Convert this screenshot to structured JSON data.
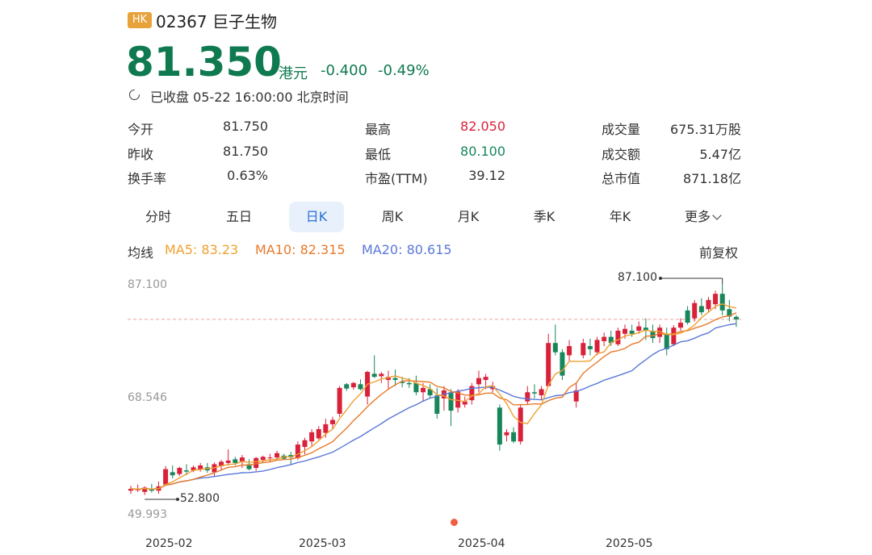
{
  "header": {
    "market_badge": "HK",
    "stock_name": "02367 巨子生物",
    "price": "81.350",
    "unit": "港元",
    "change": "-0.400",
    "change_pct": "-0.49%",
    "status": "已收盘 05-22 16:00:00 北京时间"
  },
  "colors": {
    "up": "#d9213a",
    "down": "#17865a",
    "price": "#0f7a50",
    "badge": "#e8a23a",
    "ma5": "#f0a030",
    "ma10": "#e87a2a",
    "ma20": "#5a78d8"
  },
  "quote": {
    "col1": [
      {
        "label": "今开",
        "value": "81.750"
      },
      {
        "label": "昨收",
        "value": "81.750"
      },
      {
        "label": "换手率",
        "value": "0.63%"
      }
    ],
    "col2": [
      {
        "label": "最高",
        "value": "82.050"
      },
      {
        "label": "最低",
        "value": "80.100"
      },
      {
        "label": "市盈(TTM)",
        "value": "39.12"
      }
    ],
    "col3": [
      {
        "label": "成交量",
        "value": "675.31万股"
      },
      {
        "label": "成交额",
        "value": "5.47亿"
      },
      {
        "label": "总市值",
        "value": "871.18亿"
      }
    ]
  },
  "tabs": [
    "分时",
    "五日",
    "日K",
    "周K",
    "月K",
    "季K",
    "年K",
    "更多"
  ],
  "active_tab": "日K",
  "indicators": {
    "label": "均线",
    "ma5": "MA5: 83.23",
    "ma10": "MA10: 82.315",
    "ma20": "MA20: 80.615",
    "adjust": "前复权"
  },
  "chart_data": {
    "type": "candlestick",
    "y_ticks": [
      "87.100",
      "68.546",
      "49.993"
    ],
    "x_ticks": [
      "2025-02",
      "2025-03",
      "2025-04",
      "2025-05"
    ],
    "annotations": {
      "high": "87.100",
      "low": "52.800"
    },
    "reference_price": 81.35,
    "candles": [
      [
        53.5,
        54.3,
        53.0,
        53.8
      ],
      [
        53.6,
        54.5,
        53.3,
        53.7
      ],
      [
        53.3,
        54.2,
        52.8,
        54.0
      ],
      [
        53.8,
        54.6,
        53.2,
        53.5
      ],
      [
        53.5,
        55.0,
        53.0,
        54.2
      ],
      [
        54.5,
        57.5,
        54.3,
        57.0
      ],
      [
        56.5,
        57.6,
        55.5,
        56.0
      ],
      [
        56.2,
        57.4,
        55.9,
        57.2
      ],
      [
        56.8,
        57.8,
        56.0,
        56.6
      ],
      [
        56.8,
        57.6,
        56.5,
        57.3
      ],
      [
        57.0,
        58.0,
        56.6,
        57.6
      ],
      [
        57.3,
        58.0,
        56.4,
        56.8
      ],
      [
        56.5,
        58.1,
        55.8,
        57.8
      ],
      [
        57.5,
        58.5,
        56.8,
        58.2
      ],
      [
        58.0,
        60.2,
        57.6,
        58.4
      ],
      [
        58.6,
        59.0,
        57.6,
        58.0
      ],
      [
        58.2,
        59.3,
        57.2,
        58.9
      ],
      [
        57.8,
        58.6,
        56.8,
        57.0
      ],
      [
        57.2,
        59.0,
        56.7,
        58.8
      ],
      [
        58.5,
        59.2,
        58.0,
        59.0
      ],
      [
        58.8,
        59.5,
        58.1,
        58.9
      ],
      [
        58.9,
        60.0,
        58.5,
        59.6
      ],
      [
        59.2,
        59.5,
        58.5,
        58.7
      ],
      [
        59.3,
        59.8,
        57.8,
        58.9
      ],
      [
        58.8,
        61.5,
        58.5,
        61.0
      ],
      [
        60.6,
        62.1,
        59.4,
        61.7
      ],
      [
        61.5,
        63.5,
        60.6,
        63.0
      ],
      [
        62.0,
        64.0,
        61.8,
        63.5
      ],
      [
        62.9,
        65.2,
        62.1,
        64.3
      ],
      [
        64.3,
        65.5,
        63.5,
        65.0
      ],
      [
        66.0,
        70.5,
        65.5,
        70.2
      ],
      [
        70.8,
        71.0,
        69.7,
        70.1
      ],
      [
        70.3,
        71.2,
        69.9,
        71.0
      ],
      [
        70.8,
        71.6,
        69.8,
        70.0
      ],
      [
        68.8,
        73.0,
        67.5,
        72.8
      ],
      [
        72.5,
        75.5,
        71.8,
        72.0
      ],
      [
        72.1,
        72.8,
        71.0,
        72.5
      ],
      [
        71.5,
        73.0,
        70.0,
        72.0
      ],
      [
        71.8,
        73.2,
        70.5,
        71.5
      ],
      [
        71.2,
        72.0,
        70.3,
        71.0
      ],
      [
        71.0,
        71.8,
        70.2,
        70.8
      ],
      [
        71.0,
        72.2,
        69.0,
        69.5
      ],
      [
        69.5,
        71.0,
        68.0,
        70.2
      ],
      [
        70.0,
        70.8,
        68.5,
        69.0
      ],
      [
        69.0,
        70.2,
        65.2,
        66.0
      ],
      [
        68.5,
        70.5,
        66.5,
        69.8
      ],
      [
        69.5,
        70.0,
        64.0,
        66.5
      ],
      [
        67.0,
        70.0,
        66.2,
        69.6
      ],
      [
        67.5,
        68.8,
        67.0,
        68.0
      ],
      [
        68.2,
        71.0,
        67.5,
        70.5
      ],
      [
        70.8,
        73.0,
        69.5,
        71.8
      ],
      [
        71.5,
        72.5,
        70.0,
        72.0
      ],
      [
        70.0,
        71.2,
        69.5,
        70.5
      ],
      [
        67.0,
        67.5,
        60.0,
        61.0
      ],
      [
        62.5,
        63.5,
        61.5,
        63.0
      ],
      [
        63.0,
        63.8,
        61.2,
        61.5
      ],
      [
        61.5,
        67.5,
        61.0,
        67.0
      ],
      [
        68.0,
        70.5,
        67.5,
        69.5
      ],
      [
        69.5,
        70.8,
        68.5,
        69.3
      ],
      [
        69.0,
        70.5,
        68.2,
        70.0
      ],
      [
        70.5,
        79.0,
        70.5,
        77.5
      ],
      [
        77.5,
        80.5,
        75.5,
        76.0
      ],
      [
        76.0,
        76.5,
        71.5,
        72.2
      ],
      [
        75.5,
        78.0,
        74.5,
        77.0
      ],
      [
        68.0,
        71.0,
        67.0,
        69.8
      ],
      [
        75.5,
        78.2,
        75.0,
        77.5
      ],
      [
        77.0,
        78.2,
        75.5,
        76.5
      ],
      [
        76.0,
        78.5,
        75.5,
        78.0
      ],
      [
        77.8,
        79.2,
        77.0,
        78.5
      ],
      [
        78.5,
        79.5,
        77.0,
        77.5
      ],
      [
        77.3,
        80.0,
        77.0,
        79.5
      ],
      [
        79.0,
        80.5,
        78.2,
        79.8
      ],
      [
        79.5,
        80.5,
        78.5,
        79.0
      ],
      [
        79.5,
        81.0,
        79.0,
        80.2
      ],
      [
        80.0,
        81.5,
        78.0,
        79.5
      ],
      [
        79.5,
        80.5,
        77.5,
        78.3
      ],
      [
        78.5,
        80.5,
        77.5,
        80.0
      ],
      [
        79.0,
        80.0,
        75.5,
        76.5
      ],
      [
        77.3,
        80.4,
        77.0,
        80.0
      ],
      [
        80.0,
        81.5,
        79.5,
        80.8
      ],
      [
        82.8,
        83.5,
        80.5,
        80.8
      ],
      [
        81.5,
        84.5,
        81.0,
        84.0
      ],
      [
        83.5,
        84.8,
        82.0,
        82.5
      ],
      [
        83.0,
        85.0,
        82.5,
        84.5
      ],
      [
        83.8,
        86.0,
        83.0,
        85.5
      ],
      [
        85.5,
        87.1,
        82.0,
        82.8
      ],
      [
        83.0,
        84.5,
        81.0,
        81.8
      ],
      [
        81.75,
        82.05,
        80.1,
        81.35
      ]
    ]
  }
}
